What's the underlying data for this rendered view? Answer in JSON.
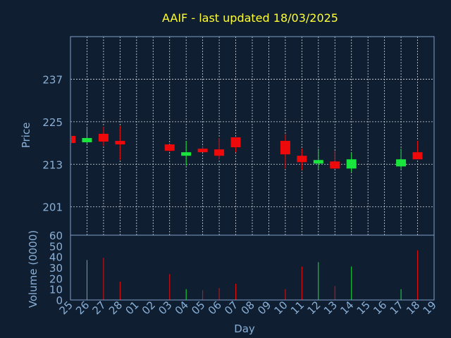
{
  "colors": {
    "background": "#0f1e30",
    "frame": "#7f9fc8",
    "grid": "#d8dde5",
    "up": "#19e63c",
    "down": "#ee0a0a",
    "title": "#ffff33",
    "text": "#8ab0d8"
  },
  "chart_data": {
    "type": "candlestick",
    "title": "AAIF - last updated 18/03/2025",
    "xlabel": "Day",
    "ylabel": "Price",
    "volume_label": "Volume (0000)",
    "price_ticks": [
      201,
      213,
      225,
      237
    ],
    "price_range": [
      193,
      249
    ],
    "volume_ticks": [
      0,
      10,
      20,
      30,
      40,
      50,
      60
    ],
    "volume_range": [
      0,
      60
    ],
    "grid": true,
    "x_ticks": [
      "25",
      "26",
      "27",
      "28",
      "01",
      "02",
      "03",
      "04",
      "05",
      "06",
      "07",
      "08",
      "09",
      "10",
      "11",
      "12",
      "13",
      "14",
      "15",
      "16",
      "17",
      "18",
      "19"
    ],
    "candles": [
      {
        "day": "25",
        "open": 221,
        "close": 219,
        "high": 221,
        "low": 219,
        "volume": 0
      },
      {
        "day": "26",
        "open": 219.2,
        "close": 220.4,
        "high": 223.4,
        "low": 218.4,
        "volume": 37
      },
      {
        "day": "27",
        "open": 221.6,
        "close": 219.4,
        "high": 223.6,
        "low": 218.2,
        "volume": 39
      },
      {
        "day": "28",
        "open": 219.6,
        "close": 218.6,
        "high": 223.8,
        "low": 214.2,
        "volume": 17
      },
      {
        "day": "03",
        "open": 218.6,
        "close": 216.8,
        "high": 218.6,
        "low": 216.6,
        "volume": 24
      },
      {
        "day": "04",
        "open": 215.4,
        "close": 216.4,
        "high": 219.6,
        "low": 212.6,
        "volume": 10
      },
      {
        "day": "05",
        "open": 217.4,
        "close": 216.4,
        "high": 218.2,
        "low": 216.4,
        "volume": 9
      },
      {
        "day": "06",
        "open": 217.2,
        "close": 215.4,
        "high": 220.4,
        "low": 214.4,
        "volume": 11
      },
      {
        "day": "07",
        "open": 220.6,
        "close": 217.8,
        "high": 220.6,
        "low": 216.4,
        "volume": 15
      },
      {
        "day": "10",
        "open": 219.6,
        "close": 215.8,
        "high": 221.4,
        "low": 211.8,
        "volume": 10
      },
      {
        "day": "11",
        "open": 215.4,
        "close": 213.6,
        "high": 217.4,
        "low": 211.4,
        "volume": 31
      },
      {
        "day": "12",
        "open": 213.2,
        "close": 214.2,
        "high": 217.4,
        "low": 211.6,
        "volume": 35
      },
      {
        "day": "13",
        "open": 213.8,
        "close": 211.8,
        "high": 216.8,
        "low": 211.6,
        "volume": 13
      },
      {
        "day": "14",
        "open": 211.8,
        "close": 214.4,
        "high": 216.2,
        "low": 210.8,
        "volume": 31
      },
      {
        "day": "17",
        "open": 212.4,
        "close": 214.4,
        "high": 217.4,
        "low": 211.6,
        "volume": 10
      },
      {
        "day": "18",
        "open": 216.4,
        "close": 214.4,
        "high": 219.6,
        "low": 214.4,
        "volume": 46
      }
    ]
  }
}
